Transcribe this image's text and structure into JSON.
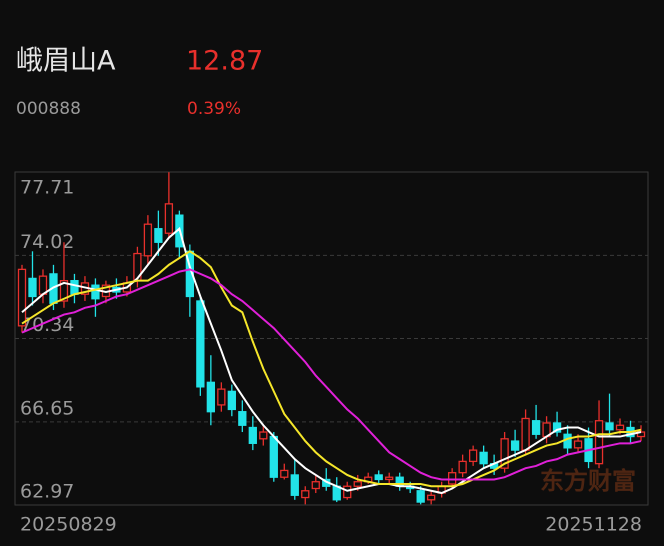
{
  "header": {
    "name": "峨眉山A",
    "price": 12.87,
    "code": "000888",
    "change": "0.39%"
  },
  "chart_data": {
    "type": "candlestick",
    "watermark": "东方财富",
    "categories": [
      "20250829",
      null,
      null,
      null,
      null,
      null,
      null,
      null,
      null,
      null,
      null,
      null,
      null,
      null,
      null,
      null,
      null,
      null,
      null,
      null,
      null,
      null,
      null,
      null,
      null,
      null,
      null,
      null,
      null,
      null,
      null,
      null,
      null,
      null,
      null,
      null,
      null,
      null,
      null,
      null,
      null,
      null,
      null,
      null,
      null,
      null,
      null,
      null,
      null,
      null,
      null,
      null,
      null,
      null,
      null,
      null,
      null,
      null,
      null,
      "20251128"
    ],
    "open": [
      70.9,
      73.0,
      72.3,
      73.2,
      72.0,
      72.9,
      72.3,
      72.7,
      72.2,
      72.6,
      72.4,
      72.9,
      74.0,
      75.2,
      75.0,
      75.8,
      74.2,
      72.0,
      68.4,
      67.4,
      68.0,
      67.1,
      66.4,
      65.9,
      66.0,
      64.2,
      64.3,
      63.3,
      63.7,
      64.1,
      63.8,
      63.3,
      63.8,
      64.0,
      64.3,
      64.1,
      64.2,
      63.8,
      63.6,
      63.2,
      63.5,
      63.9,
      64.4,
      64.9,
      65.3,
      64.8,
      64.6,
      65.8,
      65.4,
      66.7,
      66.0,
      66.6,
      66.1,
      65.5,
      65.9,
      64.8,
      66.6,
      66.3,
      66.4,
      66.0
    ],
    "high": [
      73.6,
      74.2,
      73.4,
      73.6,
      74.6,
      73.2,
      73.1,
      73.0,
      72.9,
      73.0,
      73.1,
      74.4,
      75.8,
      76.0,
      77.7,
      76.0,
      74.5,
      72.2,
      69.6,
      68.4,
      68.3,
      67.6,
      66.9,
      66.5,
      66.2,
      64.8,
      65.0,
      63.8,
      64.3,
      64.6,
      64.2,
      64.0,
      64.3,
      64.4,
      64.5,
      64.4,
      64.4,
      64.0,
      63.8,
      63.6,
      64.0,
      64.6,
      65.2,
      65.6,
      65.6,
      65.2,
      66.2,
      66.3,
      67.2,
      67.4,
      66.9,
      67.1,
      66.5,
      66.1,
      66.4,
      67.6,
      67.9,
      66.8,
      66.7,
      66.5
    ],
    "low": [
      70.6,
      71.8,
      71.9,
      71.6,
      71.7,
      71.9,
      72.0,
      71.3,
      71.9,
      72.1,
      72.2,
      72.6,
      73.6,
      74.0,
      74.8,
      73.9,
      71.3,
      67.8,
      66.5,
      67.1,
      66.9,
      66.2,
      65.4,
      65.6,
      64.0,
      64.1,
      63.2,
      63.0,
      63.5,
      63.6,
      63.1,
      63.2,
      63.6,
      63.9,
      63.9,
      63.9,
      63.6,
      63.5,
      63.0,
      63.0,
      63.3,
      63.7,
      64.2,
      64.7,
      64.6,
      64.3,
      64.4,
      65.1,
      65.2,
      65.9,
      65.7,
      66.0,
      65.2,
      65.3,
      64.6,
      64.6,
      66.0,
      66.1,
      65.7,
      65.8
    ],
    "close": [
      73.4,
      72.2,
      73.1,
      71.9,
      72.9,
      72.3,
      72.8,
      72.1,
      72.7,
      72.4,
      72.8,
      74.1,
      75.4,
      74.6,
      76.3,
      74.4,
      72.2,
      68.2,
      67.1,
      68.1,
      67.2,
      66.5,
      65.7,
      66.2,
      64.2,
      64.5,
      63.4,
      63.6,
      64.0,
      63.8,
      63.2,
      63.8,
      64.0,
      64.2,
      64.1,
      64.2,
      63.8,
      63.7,
      63.1,
      63.4,
      63.8,
      64.4,
      64.9,
      65.4,
      64.8,
      64.6,
      65.9,
      65.4,
      66.8,
      66.1,
      66.6,
      66.2,
      65.5,
      65.8,
      64.9,
      66.7,
      66.3,
      66.5,
      66.0,
      66.2
    ],
    "up_color": "#e8302c",
    "down_color": "#22e3e8",
    "series": [
      {
        "color": "#ffffff",
        "values": [
          71.5,
          71.9,
          72.3,
          72.6,
          72.8,
          72.7,
          72.6,
          72.5,
          72.4,
          72.5,
          72.6,
          73.0,
          73.6,
          74.2,
          74.8,
          75.2,
          73.5,
          72.2,
          71.0,
          69.8,
          68.5,
          67.8,
          67.1,
          66.5,
          66.0,
          65.5,
          65.0,
          64.6,
          64.3,
          64.0,
          63.8,
          63.6,
          63.7,
          63.8,
          63.9,
          63.9,
          63.8,
          63.8,
          63.7,
          63.6,
          63.5,
          63.7,
          64.0,
          64.3,
          64.6,
          64.8,
          65.0,
          65.2,
          65.4,
          65.7,
          66.0,
          66.3,
          66.4,
          66.4,
          66.2,
          66.0,
          66.0,
          66.0,
          66.1,
          66.2
        ]
      },
      {
        "color": "#f5e62a",
        "values": [
          71.0,
          71.3,
          71.6,
          71.9,
          72.1,
          72.3,
          72.4,
          72.5,
          72.6,
          72.7,
          72.8,
          72.9,
          72.9,
          73.2,
          73.6,
          73.9,
          74.2,
          73.9,
          73.5,
          72.6,
          71.8,
          71.5,
          70.2,
          69.0,
          68.0,
          67.0,
          66.4,
          65.8,
          65.3,
          64.9,
          64.6,
          64.3,
          64.1,
          64.0,
          63.9,
          63.9,
          63.9,
          63.9,
          63.9,
          63.8,
          63.8,
          63.8,
          63.9,
          64.1,
          64.3,
          64.5,
          64.8,
          65.0,
          65.2,
          65.4,
          65.6,
          65.7,
          65.9,
          66.0,
          66.0,
          66.1,
          66.1,
          66.2,
          66.2,
          66.3
        ]
      },
      {
        "color": "#e020d8",
        "values": [
          70.6,
          70.8,
          71.0,
          71.2,
          71.4,
          71.5,
          71.7,
          71.8,
          72.0,
          72.2,
          72.3,
          72.5,
          72.7,
          72.9,
          73.1,
          73.3,
          73.4,
          73.2,
          73.0,
          72.7,
          72.3,
          72.0,
          71.6,
          71.2,
          70.8,
          70.3,
          69.8,
          69.3,
          68.7,
          68.2,
          67.7,
          67.2,
          66.8,
          66.3,
          65.8,
          65.3,
          65.0,
          64.7,
          64.4,
          64.2,
          64.1,
          64.1,
          64.1,
          64.1,
          64.1,
          64.1,
          64.2,
          64.4,
          64.6,
          64.7,
          64.9,
          65.0,
          65.2,
          65.3,
          65.4,
          65.5,
          65.6,
          65.7,
          65.7,
          65.8
        ]
      }
    ],
    "ylim": [
      62.97,
      77.71
    ],
    "yticks": [
      62.97,
      66.65,
      70.34,
      74.02,
      77.71
    ],
    "grid": true
  }
}
